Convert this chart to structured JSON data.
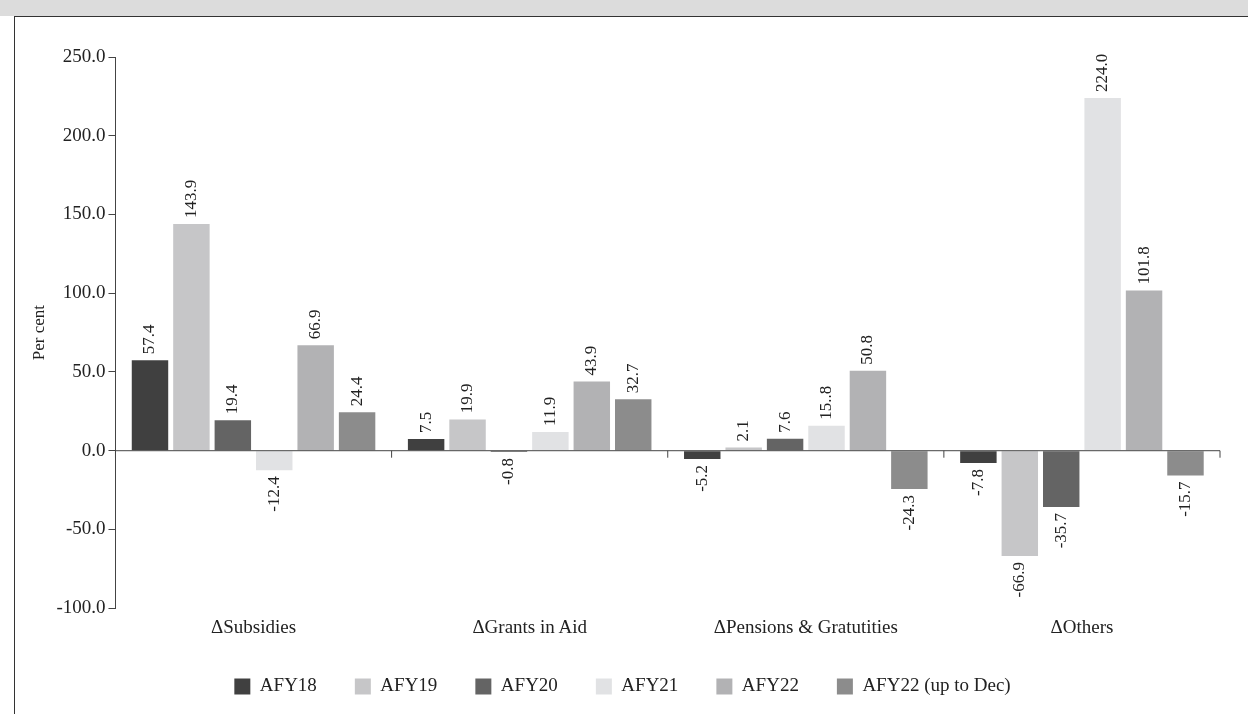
{
  "chart_data": {
    "type": "bar",
    "ylabel": "Per cent",
    "categories": [
      "ΔSubsidies",
      "ΔGrants in Aid",
      "ΔPensions & Gratutities",
      "ΔOthers"
    ],
    "ylim": [
      -100,
      250
    ],
    "yticks": [
      {
        "value": -100,
        "label": "-100.0"
      },
      {
        "value": -50,
        "label": "-50.0"
      },
      {
        "value": 0,
        "label": "0.0"
      },
      {
        "value": 50,
        "label": "50.0"
      },
      {
        "value": 100,
        "label": "100.0"
      },
      {
        "value": 150,
        "label": "150.0"
      },
      {
        "value": 200,
        "label": "200.0"
      },
      {
        "value": 250,
        "label": "250.0"
      }
    ],
    "legend": "bottom",
    "series": [
      {
        "name": "AFY18",
        "color": "#404040",
        "values": [
          57.4,
          7.5,
          -5.2,
          -7.8
        ],
        "value_labels": [
          "57.4",
          "7.5",
          "-5.2",
          "-7.8"
        ]
      },
      {
        "name": "AFY19",
        "color": "#c6c6c8",
        "values": [
          143.9,
          19.9,
          2.1,
          -66.9
        ],
        "value_labels": [
          "143.9",
          "19.9",
          "2.1",
          "-66.9"
        ]
      },
      {
        "name": "AFY20",
        "color": "#646464",
        "values": [
          19.4,
          -0.8,
          7.6,
          -35.7
        ],
        "value_labels": [
          "19.4",
          "-0.8",
          "7.6",
          "-35.7"
        ]
      },
      {
        "name": "AFY21",
        "color": "#e1e2e4",
        "values": [
          -12.4,
          11.9,
          15.8,
          224.0
        ],
        "value_labels": [
          "-12.4",
          "11.9",
          "15..8",
          "224.0"
        ]
      },
      {
        "name": "AFY22",
        "color": "#b2b2b4",
        "values": [
          66.9,
          43.9,
          50.8,
          101.8
        ],
        "value_labels": [
          "66.9",
          "43.9",
          "50.8",
          "101.8"
        ]
      },
      {
        "name": "AFY22 (up to Dec)",
        "color": "#8c8c8c",
        "values": [
          24.4,
          32.7,
          -24.3,
          -15.7
        ],
        "value_labels": [
          "24.4",
          "32.7",
          "-24.3",
          "-15.7"
        ]
      }
    ]
  }
}
